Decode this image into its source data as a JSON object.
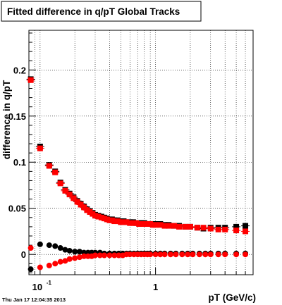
{
  "chart_data": {
    "type": "scatter",
    "title": "Fitted difference in q/pT  Global Tracks",
    "xlabel": "pT (GeV/c)",
    "ylabel": "difference in q/pT",
    "footer": "Thu Jan 17 12:04:35 2013",
    "x_scale": "log",
    "xlim": [
      0.08,
      7.0
    ],
    "ylim": [
      -0.022,
      0.243
    ],
    "grid": true,
    "x_ticks": [
      {
        "value": 0.1,
        "label": "10",
        "exp": "-1"
      },
      {
        "value": 1,
        "label": "1",
        "exp": ""
      }
    ],
    "y_ticks": [
      {
        "value": 0,
        "label": "0"
      },
      {
        "value": 0.05,
        "label": "0.05"
      },
      {
        "value": 0.1,
        "label": "0.1"
      },
      {
        "value": 0.15,
        "label": "0.15"
      },
      {
        "value": 0.2,
        "label": "0.2"
      }
    ],
    "series": [
      {
        "color": "#000000",
        "marker": "square",
        "x": [
          0.083,
          0.1,
          0.12,
          0.135,
          0.15,
          0.165,
          0.18,
          0.195,
          0.21,
          0.225,
          0.24,
          0.255,
          0.27,
          0.285,
          0.3,
          0.32,
          0.34,
          0.36,
          0.38,
          0.4,
          0.42,
          0.44,
          0.47,
          0.5,
          0.53,
          0.56,
          0.6,
          0.64,
          0.68,
          0.72,
          0.76,
          0.8,
          0.85,
          0.9,
          0.95,
          1.0,
          1.1,
          1.2,
          1.3,
          1.45,
          1.6,
          1.8,
          2.0,
          2.3,
          2.6,
          3.0,
          3.5,
          4.0,
          5.0,
          6.0
        ],
        "y": [
          0.19,
          0.117,
          0.097,
          0.09,
          0.078,
          0.07,
          0.066,
          0.062,
          0.058,
          0.055,
          0.052,
          0.049,
          0.047,
          0.045,
          0.043,
          0.042,
          0.041,
          0.04,
          0.039,
          0.038,
          0.038,
          0.037,
          0.037,
          0.036,
          0.036,
          0.035,
          0.035,
          0.035,
          0.034,
          0.034,
          0.034,
          0.034,
          0.033,
          0.033,
          0.033,
          0.033,
          0.033,
          0.032,
          0.032,
          0.031,
          0.031,
          0.03,
          0.03,
          0.029,
          0.028,
          0.029,
          0.029,
          0.029,
          0.03,
          0.031
        ],
        "yerr": [
          0.003,
          0.003,
          0.003,
          0.002,
          0.002,
          0.002,
          0.002,
          0.001,
          0.001,
          0.001,
          0.001,
          0.001,
          0.001,
          0.001,
          0.001,
          0.001,
          0.001,
          0.001,
          0.001,
          0.001,
          0.001,
          0.001,
          0.001,
          0.001,
          0.001,
          0.001,
          0.001,
          0.001,
          0.001,
          0.001,
          0.001,
          0.001,
          0.001,
          0.001,
          0.001,
          0.001,
          0.001,
          0.001,
          0.001,
          0.001,
          0.001,
          0.001,
          0.001,
          0.001,
          0.002,
          0.002,
          0.002,
          0.002,
          0.003,
          0.003
        ]
      },
      {
        "color": "#ff0000",
        "marker": "square",
        "x": [
          0.083,
          0.1,
          0.12,
          0.135,
          0.15,
          0.165,
          0.18,
          0.195,
          0.21,
          0.225,
          0.24,
          0.255,
          0.27,
          0.285,
          0.3,
          0.32,
          0.34,
          0.36,
          0.38,
          0.4,
          0.42,
          0.44,
          0.47,
          0.5,
          0.53,
          0.56,
          0.6,
          0.64,
          0.68,
          0.72,
          0.76,
          0.8,
          0.85,
          0.9,
          0.95,
          1.0,
          1.1,
          1.2,
          1.3,
          1.45,
          1.6,
          1.8,
          2.0,
          2.3,
          2.6,
          3.0,
          3.5,
          4.0,
          5.0,
          6.0
        ],
        "y": [
          0.189,
          0.115,
          0.096,
          0.089,
          0.077,
          0.069,
          0.065,
          0.061,
          0.057,
          0.054,
          0.051,
          0.048,
          0.046,
          0.044,
          0.042,
          0.041,
          0.04,
          0.039,
          0.038,
          0.037,
          0.037,
          0.036,
          0.036,
          0.035,
          0.035,
          0.035,
          0.034,
          0.034,
          0.034,
          0.033,
          0.033,
          0.033,
          0.033,
          0.033,
          0.032,
          0.032,
          0.032,
          0.031,
          0.031,
          0.031,
          0.03,
          0.03,
          0.03,
          0.029,
          0.029,
          0.028,
          0.027,
          0.027,
          0.026,
          0.025
        ],
        "yerr": [
          0.003,
          0.003,
          0.003,
          0.002,
          0.002,
          0.002,
          0.002,
          0.001,
          0.001,
          0.001,
          0.001,
          0.001,
          0.001,
          0.001,
          0.001,
          0.001,
          0.001,
          0.001,
          0.001,
          0.001,
          0.001,
          0.001,
          0.001,
          0.001,
          0.001,
          0.001,
          0.001,
          0.001,
          0.001,
          0.001,
          0.001,
          0.001,
          0.001,
          0.001,
          0.001,
          0.001,
          0.001,
          0.001,
          0.001,
          0.001,
          0.001,
          0.001,
          0.001,
          0.001,
          0.002,
          0.002,
          0.002,
          0.002,
          0.003,
          0.003
        ]
      },
      {
        "color": "#000000",
        "marker": "circle",
        "x": [
          0.083,
          0.1,
          0.12,
          0.135,
          0.15,
          0.165,
          0.18,
          0.2,
          0.22,
          0.24,
          0.26,
          0.28,
          0.3,
          0.33,
          0.36,
          0.4,
          0.44,
          0.48,
          0.52,
          0.56,
          0.6,
          0.65,
          0.7,
          0.75,
          0.8,
          0.85,
          0.9,
          1.0,
          1.1,
          1.2,
          1.35,
          1.5,
          1.7,
          1.9,
          2.1,
          2.4,
          2.7,
          3.0,
          3.5,
          4.0,
          5.0,
          6.0
        ],
        "y": [
          -0.016,
          0.011,
          0.01,
          0.009,
          0.007,
          0.005,
          0.004,
          0.003,
          0.003,
          0.002,
          0.002,
          0.002,
          0.002,
          0.002,
          0.001,
          0.001,
          0.001,
          0.001,
          0.001,
          0.001,
          0.001,
          0.001,
          0.001,
          0.001,
          0.001,
          0.001,
          0.001,
          0.001,
          0.001,
          0.001,
          0.001,
          0.001,
          0.001,
          0.001,
          0.001,
          0.001,
          0.001,
          0.001,
          0.001,
          0.001,
          0.001,
          0.001
        ]
      },
      {
        "color": "#ff0000",
        "marker": "circle",
        "x": [
          0.083,
          0.1,
          0.12,
          0.135,
          0.15,
          0.165,
          0.18,
          0.2,
          0.22,
          0.24,
          0.26,
          0.28,
          0.3,
          0.33,
          0.36,
          0.4,
          0.44,
          0.48,
          0.52,
          0.56,
          0.6,
          0.65,
          0.7,
          0.75,
          0.8,
          0.85,
          0.9,
          1.0,
          1.1,
          1.2,
          1.35,
          1.5,
          1.7,
          1.9,
          2.1,
          2.4,
          2.7,
          3.0,
          3.5,
          4.0,
          5.0,
          6.0
        ],
        "y": [
          0.007,
          -0.014,
          -0.012,
          -0.01,
          -0.008,
          -0.007,
          -0.005,
          -0.004,
          -0.003,
          -0.002,
          -0.002,
          -0.002,
          -0.001,
          -0.001,
          -0.001,
          -0.001,
          -0.001,
          -0.001,
          -0.001,
          0.0,
          0.0,
          0.0,
          0.0,
          0.0,
          0.0,
          0.0,
          0.0,
          0.0,
          0.0,
          0.0,
          0.0,
          0.0,
          0.0,
          0.0,
          0.0,
          0.0,
          0.0,
          0.0,
          0.0,
          0.0,
          0.0,
          0.0
        ]
      }
    ]
  }
}
